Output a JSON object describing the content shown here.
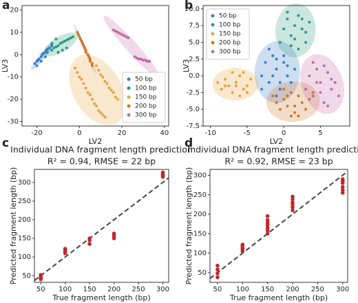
{
  "chart_data": [
    {
      "type": "scatter",
      "panel_label": "a",
      "xlabel": "LV2",
      "ylabel": "LV3",
      "xlim": [
        -27,
        42
      ],
      "ylim": [
        -32,
        22
      ],
      "xticks": [
        -20,
        0,
        20,
        40
      ],
      "yticks": [
        -30,
        -20,
        -10,
        0,
        10,
        20
      ],
      "legend": "lower right",
      "ellipses": true,
      "series": [
        {
          "name": "50 bp",
          "color": "#3a7dc9",
          "x": [
            -21,
            -20,
            -19.5,
            -19,
            -18,
            -17.5,
            -17,
            -16,
            -15.5,
            -15,
            -14,
            -13,
            -18,
            -16,
            -20
          ],
          "values": [
            -4,
            -3,
            -2.5,
            -2,
            -1,
            0,
            0.5,
            1,
            2,
            2.5,
            3,
            4,
            -3,
            -1,
            -5
          ]
        },
        {
          "name": "100 bp",
          "color": "#2a9d80",
          "x": [
            -15,
            -13,
            -12,
            -11,
            -10,
            -9,
            -8,
            -7,
            -6,
            -5,
            -4,
            -3,
            -10,
            -8,
            -6,
            -13,
            -11
          ],
          "values": [
            1,
            2,
            3,
            3.5,
            4,
            5,
            5.5,
            6,
            6.5,
            7,
            7.5,
            8,
            1,
            2,
            3,
            5,
            7
          ]
        },
        {
          "name": "150 bp",
          "color": "#e8a23a",
          "x": [
            -2,
            -1,
            0,
            1,
            2,
            3,
            4,
            5,
            6,
            7,
            8,
            9,
            10,
            11,
            12,
            8,
            9,
            10,
            11,
            12,
            13,
            14,
            15,
            16,
            17,
            18
          ],
          "values": [
            -6,
            -8,
            -10,
            -11,
            -13,
            -15,
            -17,
            -18,
            -20,
            -22,
            -23,
            -25,
            -26,
            -27,
            -28,
            -5,
            -7,
            -9,
            -10,
            -12,
            -13,
            -15,
            -16,
            -17,
            -19,
            -20
          ]
        },
        {
          "name": "200 bp",
          "color": "#d0762c",
          "x": [
            -1,
            -0.5,
            0,
            0.5,
            1,
            1.5,
            2,
            2.5,
            3,
            3,
            4,
            4.5,
            5,
            5,
            6,
            6
          ],
          "values": [
            10,
            9,
            8,
            7,
            6,
            5,
            4,
            3,
            2,
            1,
            0,
            -1,
            -2,
            -3,
            -4,
            -5
          ]
        },
        {
          "name": "300 bp",
          "color": "#c46aa6",
          "x": [
            16,
            17,
            18,
            19,
            20,
            21,
            22,
            23,
            26,
            27,
            28,
            29,
            30,
            31,
            32,
            33
          ],
          "values": [
            11,
            10.5,
            10,
            9.5,
            9,
            8.5,
            8,
            7.5,
            -1,
            -1.5,
            -2,
            -2,
            -2.5,
            -2.5,
            -3,
            -3
          ]
        }
      ]
    },
    {
      "type": "scatter",
      "panel_label": "b",
      "xlabel": "LV2",
      "ylabel": "LV3",
      "xlim": [
        -11,
        9
      ],
      "ylim": [
        -7.5,
        10.5
      ],
      "xticks": [
        -10,
        -5,
        0,
        5
      ],
      "yticks": [
        {
          "value": -7.5,
          "label": "-7.5"
        },
        {
          "value": -5,
          "label": "-5.0"
        },
        {
          "value": -2.5,
          "label": "-2.5"
        },
        {
          "value": 0,
          "label": "0.0"
        },
        {
          "value": 2.5,
          "label": "2.5"
        },
        {
          "value": 5,
          "label": "5.0"
        },
        {
          "value": 7.5,
          "label": "7.5"
        },
        {
          "value": 10,
          "label": "10.0"
        }
      ],
      "legend": "upper left",
      "ellipses": true,
      "series": [
        {
          "name": "50 bp",
          "color": "#3a7dc9",
          "x": [
            -3,
            -2.5,
            -2,
            -1.5,
            -1,
            -0.5,
            0,
            0.5,
            1,
            -2,
            -1,
            0,
            1.5,
            -1.5,
            -0.5,
            0.5,
            -3,
            -1
          ],
          "values": [
            0,
            2,
            -1,
            3,
            1,
            -2,
            2,
            0,
            -1,
            4,
            -3,
            3,
            1,
            0,
            -1,
            1.5,
            -2,
            2.5
          ]
        },
        {
          "name": "100 bp",
          "color": "#2a9d80",
          "x": [
            -0.5,
            0,
            0.5,
            1,
            1.5,
            2,
            2.5,
            3,
            3.5,
            1,
            2,
            0.5,
            3,
            1.5,
            2.5
          ],
          "values": [
            5,
            7,
            8.5,
            6,
            5.5,
            9,
            7,
            6.5,
            8,
            4.5,
            4,
            9.5,
            5,
            7.5,
            8.5
          ]
        },
        {
          "name": "150 bp",
          "color": "#e8a23a",
          "x": [
            -9,
            -8.5,
            -8,
            -7.5,
            -7,
            -6.5,
            -6,
            -5.5,
            -5,
            -4.5,
            -6,
            -7,
            -5,
            -8,
            -6.5,
            -5.5
          ],
          "values": [
            -1,
            -2,
            -0.5,
            -1.5,
            -2.5,
            -1,
            0,
            -2,
            -1.5,
            -0.5,
            -3,
            0.5,
            -2.5,
            -1.5,
            -1.5,
            0.5
          ]
        },
        {
          "name": "200 bp",
          "color": "#d0762c",
          "x": [
            -1.5,
            -1,
            -0.5,
            0,
            0.5,
            1,
            1.5,
            2,
            2.5,
            3,
            3.5,
            4,
            0,
            1,
            2,
            3,
            1.5,
            0.5
          ],
          "values": [
            -3,
            -4,
            -5,
            -3.5,
            -4.5,
            -2.5,
            -5.5,
            -3,
            -4,
            -5,
            -3.5,
            -2.5,
            -2,
            -6,
            -6,
            -2,
            -4.5,
            -3
          ]
        },
        {
          "name": "300 bp",
          "color": "#c46aa6",
          "x": [
            3,
            3.5,
            4,
            4.5,
            5,
            5.5,
            6,
            6.5,
            7,
            7.5,
            4,
            5,
            6,
            5.5,
            4.5,
            6.5
          ],
          "values": [
            -2,
            0,
            -3,
            1,
            -1,
            -4,
            0.5,
            -2,
            -1,
            -3,
            2,
            -2.5,
            -4.5,
            1.5,
            -1,
            -0.5
          ]
        }
      ]
    },
    {
      "type": "scatter",
      "panel_label": "c",
      "title": "Individual DNA fragment length prediction",
      "subtitle": "R² = 0.94, RMSE = 22 bp",
      "xlabel": "True fragment length (bp)",
      "ylabel": "Predicted fragment length (bp)",
      "xlim": [
        37,
        312
      ],
      "ylim": [
        32,
        335
      ],
      "xticks": [
        50,
        100,
        150,
        200,
        250,
        300
      ],
      "yticks": [
        50,
        100,
        150,
        200,
        250,
        300
      ],
      "diagonal": true,
      "series": [
        {
          "color": "#c0282d",
          "x": [
            50,
            50,
            50,
            50,
            50,
            100,
            100,
            100,
            100,
            150,
            150,
            150,
            200,
            200,
            200,
            200,
            300,
            300,
            300,
            300,
            300
          ],
          "values": [
            40,
            44,
            47,
            50,
            52,
            110,
            115,
            118,
            122,
            135,
            145,
            150,
            150,
            155,
            160,
            163,
            315,
            318,
            320,
            323,
            327
          ]
        }
      ]
    },
    {
      "type": "scatter",
      "panel_label": "d",
      "title": "Individual DNA fragment length prediction",
      "subtitle": "R² = 0.92, RMSE = 23 bp",
      "xlabel": "True fragment length (bp)",
      "ylabel": "Predicted fragment length (bp)",
      "xlim": [
        35,
        310
      ],
      "ylim": [
        25,
        315
      ],
      "xticks": [
        50,
        100,
        150,
        200,
        250,
        300
      ],
      "yticks": [
        50,
        100,
        150,
        200,
        250,
        300
      ],
      "diagonal": true,
      "series": [
        {
          "color": "#c0282d",
          "x": [
            50,
            50,
            50,
            50,
            100,
            100,
            100,
            100,
            100,
            150,
            150,
            150,
            150,
            150,
            150,
            150,
            200,
            200,
            200,
            200,
            200,
            200,
            300,
            300,
            300,
            300,
            300,
            300
          ],
          "values": [
            38,
            48,
            58,
            68,
            105,
            110,
            113,
            118,
            122,
            150,
            158,
            165,
            172,
            178,
            185,
            195,
            210,
            218,
            225,
            230,
            238,
            245,
            255,
            262,
            270,
            280,
            285,
            290
          ]
        }
      ]
    }
  ]
}
